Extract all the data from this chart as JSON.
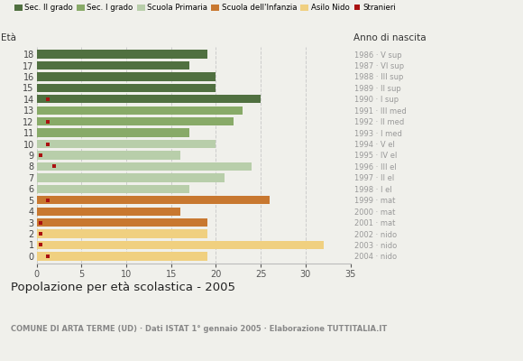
{
  "ages": [
    18,
    17,
    16,
    15,
    14,
    13,
    12,
    11,
    10,
    9,
    8,
    7,
    6,
    5,
    4,
    3,
    2,
    1,
    0
  ],
  "values": [
    19,
    17,
    20,
    20,
    25,
    23,
    22,
    17,
    20,
    16,
    24,
    21,
    17,
    26,
    16,
    19,
    19,
    32,
    19
  ],
  "colors": [
    "#507040",
    "#507040",
    "#507040",
    "#507040",
    "#507040",
    "#88aa68",
    "#88aa68",
    "#88aa68",
    "#b8ceaa",
    "#b8ceaa",
    "#b8ceaa",
    "#b8ceaa",
    "#b8ceaa",
    "#c87830",
    "#c87830",
    "#c87830",
    "#f0d080",
    "#f0d080",
    "#f0d080"
  ],
  "stranieri_ages": [
    14,
    12,
    10,
    9,
    8,
    5,
    3,
    2,
    1,
    0
  ],
  "stranieri_x": [
    1.2,
    1.2,
    1.2,
    0.4,
    2.0,
    1.2,
    0.4,
    0.4,
    0.4,
    1.2
  ],
  "stranieri_color": "#aa1111",
  "right_labels": [
    "1986 · V sup",
    "1987 · VI sup",
    "1988 · III sup",
    "1989 · II sup",
    "1990 · I sup",
    "1991 · III med",
    "1992 · II med",
    "1993 · I med",
    "1994 · V el",
    "1995 · IV el",
    "1996 · III el",
    "1997 · II el",
    "1998 · I el",
    "1999 · mat",
    "2000 · mat",
    "2001 · mat",
    "2002 · nido",
    "2003 · nido",
    "2004 · nido"
  ],
  "legend_labels": [
    "Sec. II grado",
    "Sec. I grado",
    "Scuola Primaria",
    "Scuola dell'Infanzia",
    "Asilo Nido",
    "Stranieri"
  ],
  "legend_colors": [
    "#507040",
    "#88aa68",
    "#b8ceaa",
    "#c87830",
    "#f0d080",
    "#aa1111"
  ],
  "title": "Popolazione per età scolastica - 2005",
  "subtitle": "COMUNE DI ARTA TERME (UD) · Dati ISTAT 1° gennaio 2005 · Elaborazione TUTTITALIA.IT",
  "xlim": [
    0,
    35
  ],
  "xticks": [
    0,
    5,
    10,
    15,
    20,
    25,
    30,
    35
  ],
  "bg_color": "#f0f0eb",
  "bar_height": 0.75
}
